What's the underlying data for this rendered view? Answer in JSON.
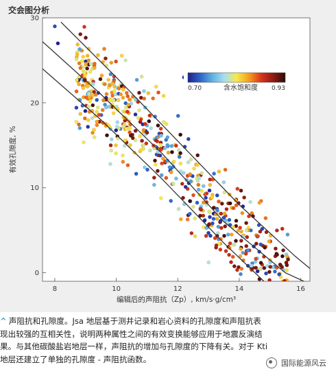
{
  "panel": {
    "title": "交会图分析"
  },
  "chart_data": {
    "type": "scatter",
    "title": "",
    "xlabel": "编辑后的声阻抗（Zp）, km/s·g/cm³",
    "ylabel": "有效孔隙度, %",
    "xlim": [
      7.6,
      16.3
    ],
    "ylim": [
      -1,
      30
    ],
    "x_ticks": [
      8,
      10,
      12,
      14,
      16
    ],
    "y_ticks": [
      0,
      10,
      20,
      30
    ],
    "grid": false,
    "colorbar": {
      "label": "含水饱和度",
      "min": 0.7,
      "max": 0.93,
      "min_label": "0.70",
      "max_label": "0.93",
      "placement": "top-right"
    },
    "trend_lines": [
      {
        "name": "",
        "points": [
          [
            7.6,
            27.2
          ],
          [
            9.5,
            21.0
          ],
          [
            11.5,
            14.0
          ],
          [
            13.5,
            6.0
          ],
          [
            15.5,
            0.0
          ],
          [
            16.1,
            -1.0
          ]
        ]
      },
      {
        "name": "",
        "points": [
          [
            8.2,
            29.5
          ],
          [
            10.0,
            23.0
          ],
          [
            12.0,
            15.5
          ],
          [
            14.0,
            8.0
          ],
          [
            15.8,
            2.0
          ],
          [
            16.3,
            0.5
          ]
        ]
      },
      {
        "name": "",
        "points": [
          [
            7.6,
            24.0
          ],
          [
            9.5,
            18.0
          ],
          [
            11.5,
            11.0
          ],
          [
            13.5,
            3.5
          ],
          [
            14.8,
            -1.0
          ]
        ]
      }
    ],
    "generator": {
      "seed": 7,
      "count": 640,
      "x_range": [
        8.7,
        15.6
      ],
      "center_line": [
        [
          8.7,
          22.5
        ],
        [
          10.0,
          19.5
        ],
        [
          11.0,
          16.0
        ],
        [
          12.0,
          12.5
        ],
        [
          13.0,
          8.0
        ],
        [
          14.0,
          4.0
        ],
        [
          15.0,
          1.5
        ],
        [
          15.6,
          0.2
        ]
      ],
      "y_spread": 3.2
    },
    "annotated_points": [
      {
        "x": 8.0,
        "y": 29.0,
        "s": 0.72
      },
      {
        "x": 8.1,
        "y": 27.0,
        "s": 0.7
      },
      {
        "x": 10.3,
        "y": 25.0,
        "s": 0.8
      },
      {
        "x": 9.1,
        "y": 25.0,
        "s": 0.85
      },
      {
        "x": 13.5,
        "y": 22.0,
        "s": 0.93
      },
      {
        "x": 12.2,
        "y": 23.0,
        "s": 0.72
      }
    ]
  },
  "caption": {
    "lines": [
      "声阻抗和孔隙度。Jsa 地层基于测井记录和岩心资料的孔隙度和声阻抗表",
      "现出较强的互相关性，说明两种属性之间的有效变换能够应用于地震反演结",
      "果。与其他碳酸盐岩地层一样，声阻抗的增加与孔隙度的下降有关。对于 Kti",
      "地层还建立了单独的孔隙度 - 声阻抗函数。"
    ]
  },
  "watermark": {
    "text": "国际能源风云"
  },
  "colors": {
    "colormap": [
      "#1f1f8f",
      "#2d63c8",
      "#5fb1e0",
      "#a8dff0",
      "#f6e94d",
      "#f4a020",
      "#d9361b",
      "#8e1a12",
      "#2b0d08"
    ],
    "trend_line": "#333333",
    "panel_bg": "#efefef",
    "plot_bg": "#ffffff"
  }
}
